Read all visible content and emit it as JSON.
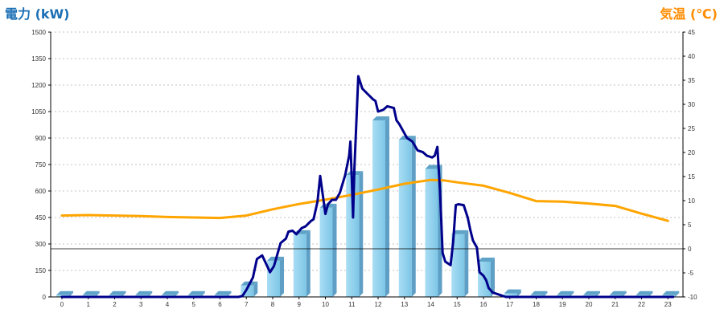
{
  "chart_data": {
    "type": "bar+line",
    "title": "",
    "y_left_label": "電力 (kW)",
    "y_right_label": "気温 (℃)",
    "y_left_range": [
      0,
      1500
    ],
    "y_left_ticks": [
      0,
      150,
      300,
      450,
      600,
      750,
      900,
      1050,
      1200,
      1350,
      1500
    ],
    "y_right_range": [
      -10,
      45
    ],
    "y_right_ticks": [
      -10,
      -5,
      0,
      5,
      10,
      15,
      20,
      25,
      30,
      35,
      40,
      45
    ],
    "x_categories": [
      "0",
      "1",
      "2",
      "3",
      "4",
      "5",
      "6",
      "7",
      "8",
      "9",
      "10",
      "11",
      "12",
      "13",
      "14",
      "15",
      "16",
      "17",
      "18",
      "19",
      "20",
      "21",
      "22",
      "23"
    ],
    "grid": "horizontal dotted",
    "colors": {
      "bar_front": "#87ceeb",
      "bar_side": "#5f9fc5",
      "bar_top": "#5fa3c8",
      "power_line": "#00008b",
      "temp_line": "#ffa500",
      "left_title": "#1c6fb5",
      "right_title": "#ff8c00",
      "grid": "#b0b0b0"
    },
    "bar_series": {
      "axis": "left",
      "values": [
        10,
        10,
        10,
        10,
        10,
        10,
        10,
        65,
        205,
        355,
        505,
        690,
        1000,
        890,
        725,
        355,
        200,
        20,
        10,
        10,
        10,
        10,
        10,
        10
      ]
    },
    "power_line": {
      "axis": "left",
      "points": [
        [
          0,
          0
        ],
        [
          6.7,
          0
        ],
        [
          6.85,
          5
        ],
        [
          7.0,
          40
        ],
        [
          7.25,
          110
        ],
        [
          7.4,
          215
        ],
        [
          7.6,
          235
        ],
        [
          7.9,
          140
        ],
        [
          8.05,
          175
        ],
        [
          8.3,
          305
        ],
        [
          8.5,
          330
        ],
        [
          8.6,
          370
        ],
        [
          8.75,
          375
        ],
        [
          8.9,
          355
        ],
        [
          9.1,
          390
        ],
        [
          9.25,
          400
        ],
        [
          9.45,
          430
        ],
        [
          9.55,
          440
        ],
        [
          9.7,
          540
        ],
        [
          9.8,
          685
        ],
        [
          9.9,
          580
        ],
        [
          10.0,
          470
        ],
        [
          10.1,
          525
        ],
        [
          10.25,
          550
        ],
        [
          10.4,
          550
        ],
        [
          10.55,
          590
        ],
        [
          10.75,
          690
        ],
        [
          10.9,
          800
        ],
        [
          10.95,
          880
        ],
        [
          11.0,
          670
        ],
        [
          11.05,
          450
        ],
        [
          11.1,
          720
        ],
        [
          11.25,
          1250
        ],
        [
          11.4,
          1180
        ],
        [
          11.6,
          1150
        ],
        [
          11.8,
          1120
        ],
        [
          11.9,
          1110
        ],
        [
          12.0,
          1050
        ],
        [
          12.2,
          1060
        ],
        [
          12.35,
          1080
        ],
        [
          12.6,
          1070
        ],
        [
          12.7,
          1000
        ],
        [
          12.8,
          980
        ],
        [
          12.95,
          940
        ],
        [
          13.1,
          900
        ],
        [
          13.3,
          880
        ],
        [
          13.5,
          830
        ],
        [
          13.7,
          820
        ],
        [
          13.85,
          800
        ],
        [
          14.05,
          790
        ],
        [
          14.15,
          800
        ],
        [
          14.25,
          850
        ],
        [
          14.35,
          600
        ],
        [
          14.45,
          250
        ],
        [
          14.55,
          200
        ],
        [
          14.75,
          180
        ],
        [
          14.85,
          310
        ],
        [
          14.95,
          520
        ],
        [
          15.05,
          525
        ],
        [
          15.25,
          520
        ],
        [
          15.4,
          450
        ],
        [
          15.5,
          380
        ],
        [
          15.6,
          320
        ],
        [
          15.75,
          280
        ],
        [
          15.85,
          140
        ],
        [
          16.0,
          120
        ],
        [
          16.1,
          95
        ],
        [
          16.2,
          50
        ],
        [
          16.35,
          25
        ],
        [
          16.55,
          15
        ],
        [
          16.85,
          0
        ],
        [
          23.2,
          0
        ]
      ]
    },
    "temperature_line": {
      "axis": "right",
      "points": [
        [
          0,
          6.9
        ],
        [
          1,
          7.0
        ],
        [
          2,
          6.9
        ],
        [
          3,
          6.8
        ],
        [
          4,
          6.6
        ],
        [
          5,
          6.5
        ],
        [
          6,
          6.4
        ],
        [
          7,
          6.9
        ],
        [
          8,
          8.2
        ],
        [
          9,
          9.3
        ],
        [
          10,
          10.2
        ],
        [
          11,
          11.2
        ],
        [
          12,
          12.3
        ],
        [
          13,
          13.5
        ],
        [
          14,
          14.3
        ],
        [
          14.5,
          14.2
        ],
        [
          15,
          13.8
        ],
        [
          16,
          13.1
        ],
        [
          17,
          11.6
        ],
        [
          18,
          9.9
        ],
        [
          19,
          9.8
        ],
        [
          20,
          9.4
        ],
        [
          21,
          8.9
        ],
        [
          22,
          7.3
        ],
        [
          23,
          5.8
        ]
      ]
    }
  }
}
